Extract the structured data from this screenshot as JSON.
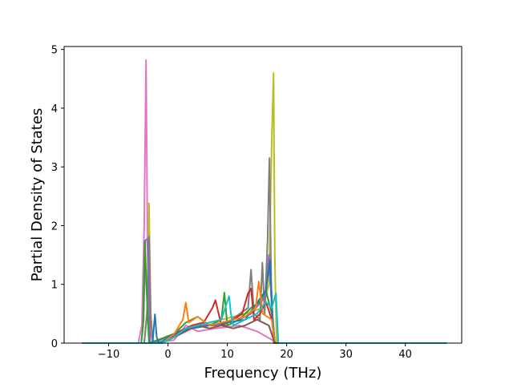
{
  "chart_data": {
    "type": "line",
    "title": "",
    "xlabel": "Frequency (THz)",
    "ylabel": "Partial Density of States",
    "xlim": [
      -17.5,
      49.5
    ],
    "ylim": [
      0,
      5.05
    ],
    "xticks": [
      -10,
      0,
      10,
      20,
      30,
      40
    ],
    "xtick_labels": [
      "−10",
      "0",
      "10",
      "20",
      "30",
      "40"
    ],
    "yticks": [
      0,
      1,
      2,
      3,
      4,
      5
    ],
    "ytick_labels": [
      "0",
      "1",
      "2",
      "3",
      "4",
      "5"
    ],
    "grid": false,
    "legend": "none",
    "colors": [
      "#1f77b4",
      "#ff7f0e",
      "#2ca02c",
      "#d62728",
      "#9467bd",
      "#8c564b",
      "#e377c2",
      "#7f7f7f",
      "#bcbd22",
      "#17becf"
    ],
    "series": [
      {
        "color": "#e377c2",
        "x": [
          -14.5,
          -5,
          -4.4,
          -4.0,
          -3.7,
          -3.4,
          -3.0,
          -2.5,
          1,
          3,
          5,
          8,
          12,
          15,
          18.5,
          47
        ],
        "y": [
          0,
          0,
          0.3,
          2.0,
          4.82,
          1.0,
          0.2,
          0,
          0.05,
          0.3,
          0.2,
          0.25,
          0.3,
          0.2,
          0,
          0
        ]
      },
      {
        "color": "#bcbd22",
        "x": [
          -14.5,
          -4,
          -3.5,
          -3.2,
          -2.9,
          -2.5,
          2,
          5,
          9,
          13,
          16,
          17,
          17.5,
          17.8,
          18.0,
          18.3,
          47
        ],
        "y": [
          0,
          0,
          0.6,
          2.38,
          0.5,
          0,
          0.2,
          0.3,
          0.4,
          0.5,
          0.6,
          1.0,
          3.5,
          4.6,
          1.5,
          0,
          0
        ]
      },
      {
        "color": "#7f7f7f",
        "x": [
          -14.5,
          -4,
          -3.5,
          -3.2,
          -2.9,
          -2.5,
          3,
          6,
          10,
          13.5,
          14,
          14.5,
          15.5,
          15.9,
          16.3,
          16.8,
          17.1,
          17.4,
          17.8,
          47
        ],
        "y": [
          0,
          0,
          0.5,
          1.82,
          0.4,
          0,
          0.25,
          0.3,
          0.35,
          0.6,
          1.25,
          0.5,
          0.4,
          1.37,
          0.5,
          1.8,
          3.15,
          1.0,
          0,
          0
        ]
      },
      {
        "color": "#9467bd",
        "x": [
          -14.5,
          -4.5,
          -4.1,
          -3.8,
          -3.4,
          -3.0,
          2,
          6,
          10,
          14,
          16.5,
          17,
          17.5,
          18,
          47
        ],
        "y": [
          0,
          0,
          0.4,
          1.75,
          1.78,
          0,
          0.2,
          0.3,
          0.3,
          0.5,
          0.8,
          1.5,
          0.6,
          0,
          0
        ]
      },
      {
        "color": "#2ca02c",
        "x": [
          -14.5,
          -4.5,
          -4.2,
          -3.9,
          -3.6,
          -3.2,
          1,
          3,
          5,
          7,
          9,
          9.5,
          10,
          12,
          14,
          15.5,
          16.5,
          17.5,
          18,
          47
        ],
        "y": [
          0,
          0,
          0.3,
          1.74,
          0.9,
          0,
          0.15,
          0.35,
          0.45,
          0.3,
          0.4,
          0.86,
          0.3,
          0.4,
          0.6,
          0.7,
          0.9,
          0.5,
          0,
          0
        ]
      },
      {
        "color": "#d62728",
        "x": [
          -14.5,
          -1,
          2,
          4,
          6,
          7.5,
          8,
          9,
          11,
          12.5,
          13.5,
          14,
          14.5,
          15.5,
          16.5,
          17.5,
          18,
          47
        ],
        "y": [
          0,
          0,
          0.2,
          0.3,
          0.35,
          0.6,
          0.73,
          0.3,
          0.4,
          0.5,
          0.85,
          0.93,
          0.4,
          0.5,
          0.7,
          0.4,
          0,
          0
        ]
      },
      {
        "color": "#1f77b4",
        "x": [
          -14.5,
          -2.6,
          -2.2,
          -1.9,
          -1.5,
          1,
          4,
          7,
          10,
          13,
          16.5,
          17.2,
          17.6,
          18,
          47
        ],
        "y": [
          0,
          0,
          0.49,
          0.1,
          0,
          0.15,
          0.25,
          0.3,
          0.35,
          0.4,
          0.9,
          1.4,
          0.5,
          0,
          0
        ]
      },
      {
        "color": "#ff7f0e",
        "x": [
          -14.5,
          -1,
          1,
          2.5,
          3,
          3.5,
          5,
          7,
          9,
          11,
          13,
          14.8,
          15.3,
          16,
          17.5,
          18,
          47
        ],
        "y": [
          0,
          0,
          0.15,
          0.4,
          0.69,
          0.35,
          0.45,
          0.3,
          0.35,
          0.4,
          0.45,
          0.6,
          1.05,
          0.5,
          0.4,
          0,
          0
        ]
      },
      {
        "color": "#8c564b",
        "x": [
          -14.5,
          -1,
          1,
          3,
          5,
          7,
          9,
          11,
          13,
          15,
          17,
          18,
          47
        ],
        "y": [
          0,
          0,
          0.1,
          0.2,
          0.3,
          0.25,
          0.3,
          0.25,
          0.3,
          0.4,
          0.3,
          0,
          0
        ]
      },
      {
        "color": "#17becf",
        "x": [
          -14.5,
          -1,
          1,
          3,
          5,
          7,
          9,
          10.3,
          10.6,
          11,
          13,
          15,
          16.5,
          17.5,
          18.2,
          18.6,
          47
        ],
        "y": [
          0,
          0,
          0.1,
          0.25,
          0.3,
          0.35,
          0.4,
          0.8,
          0.5,
          0.3,
          0.4,
          0.5,
          0.7,
          0.6,
          0.85,
          0,
          0
        ]
      }
    ]
  }
}
